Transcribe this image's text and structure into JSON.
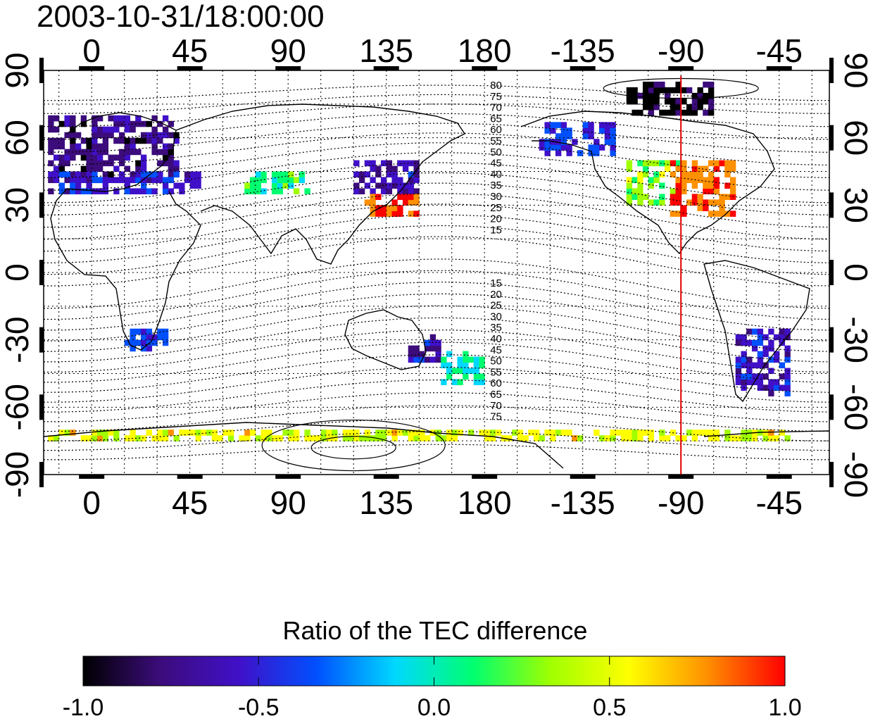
{
  "title": "2003-10-31/18:00:00",
  "map": {
    "lon_ticks": [
      {
        "lon": 0,
        "label": "0"
      },
      {
        "lon": 45,
        "label": "45"
      },
      {
        "lon": 90,
        "label": "90"
      },
      {
        "lon": 135,
        "label": "135"
      },
      {
        "lon": 180,
        "label": "180"
      },
      {
        "lon": 225,
        "label": "-135"
      },
      {
        "lon": 270,
        "label": "-90"
      },
      {
        "lon": 315,
        "label": "-45"
      }
    ],
    "lat_ticks": [
      {
        "lat": 90,
        "label": "90"
      },
      {
        "lat": 60,
        "label": "60"
      },
      {
        "lat": 30,
        "label": "30"
      },
      {
        "lat": 0,
        "label": "0"
      },
      {
        "lat": -30,
        "label": "-30"
      },
      {
        "lat": -60,
        "label": "-60"
      },
      {
        "lat": -90,
        "label": "-90"
      }
    ],
    "lon_range": [
      -22,
      338
    ],
    "lat_range": [
      -90,
      90
    ],
    "grid": true,
    "meridian_line": {
      "lon": 270,
      "color": "#e00000"
    },
    "north_mlat_labels": [
      "80",
      "75",
      "70",
      "65",
      "60",
      "55",
      "50",
      "45",
      "40",
      "35",
      "30",
      "25",
      "20",
      "15"
    ],
    "south_mlat_labels": [
      "15",
      "20",
      "25",
      "30",
      "35",
      "40",
      "45",
      "50",
      "55",
      "60",
      "65",
      "70",
      "75"
    ]
  },
  "colorbar": {
    "title": "Ratio of the TEC difference",
    "ticks": [
      "-1.0",
      "-0.5",
      "0.0",
      "0.5",
      "1.0"
    ],
    "range": [
      -1.0,
      1.0
    ],
    "colors": [
      "#000000",
      "#3c0c7c",
      "#4010c8",
      "#0050ff",
      "#00d8ff",
      "#00ff70",
      "#a0ff00",
      "#ffff00",
      "#ff9000",
      "#ff0000"
    ]
  },
  "chart_data": {
    "type": "heatmap",
    "title": "2003-10-31/18:00:00",
    "xlabel": "",
    "ylabel": "",
    "xlim": [
      -22,
      338
    ],
    "ylim": [
      -90,
      90
    ],
    "value_range": [
      -1.0,
      1.0
    ],
    "regions": [
      {
        "lon": [
          -20,
          40
        ],
        "lat": [
          40,
          70
        ],
        "value": -0.75
      },
      {
        "lon": [
          -20,
          50
        ],
        "lat": [
          35,
          45
        ],
        "value": -0.5
      },
      {
        "lon": [
          70,
          100
        ],
        "lat": [
          35,
          45
        ],
        "value": 0.1
      },
      {
        "lon": [
          120,
          150
        ],
        "lat": [
          35,
          48
        ],
        "value": -0.6
      },
      {
        "lon": [
          125,
          150
        ],
        "lat": [
          25,
          35
        ],
        "value": 0.9
      },
      {
        "lon": [
          205,
          240
        ],
        "lat": [
          52,
          65
        ],
        "value": -0.45
      },
      {
        "lon": [
          245,
          270
        ],
        "lat": [
          30,
          50
        ],
        "value": 0.3
      },
      {
        "lon": [
          265,
          295
        ],
        "lat": [
          25,
          50
        ],
        "value": 0.85
      },
      {
        "lon": [
          245,
          285
        ],
        "lat": [
          70,
          85
        ],
        "value": -0.95
      },
      {
        "lon": [
          295,
          320
        ],
        "lat": [
          -55,
          -25
        ],
        "value": -0.55
      },
      {
        "lon": [
          145,
          160
        ],
        "lat": [
          -40,
          -28
        ],
        "value": -0.6
      },
      {
        "lon": [
          160,
          180
        ],
        "lat": [
          -50,
          -35
        ],
        "value": 0.0
      },
      {
        "lon": [
          15,
          35
        ],
        "lat": [
          -35,
          -25
        ],
        "value": -0.4
      },
      {
        "lon": [
          -20,
          320
        ],
        "lat": [
          -75,
          -70
        ],
        "value": 0.5
      }
    ]
  }
}
